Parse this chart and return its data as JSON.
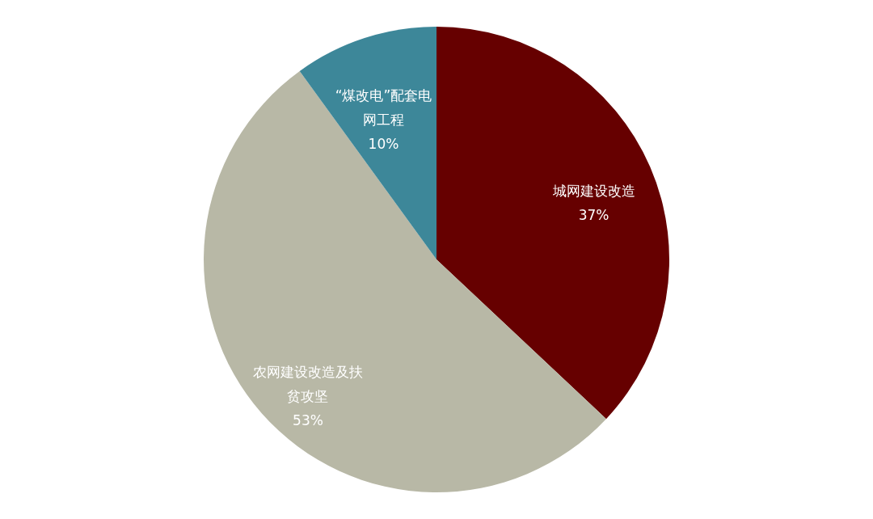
{
  "chart_data": {
    "type": "pie",
    "categories": [
      "城网建设改造",
      "农网建设改造及扶贫攻坚",
      "“煤改电”配套电网工程"
    ],
    "values": [
      37,
      53,
      10
    ],
    "colors": [
      "#660000",
      "#b8b8a6",
      "#3d8799"
    ],
    "value_labels": [
      "37%",
      "53%",
      "10%"
    ]
  }
}
